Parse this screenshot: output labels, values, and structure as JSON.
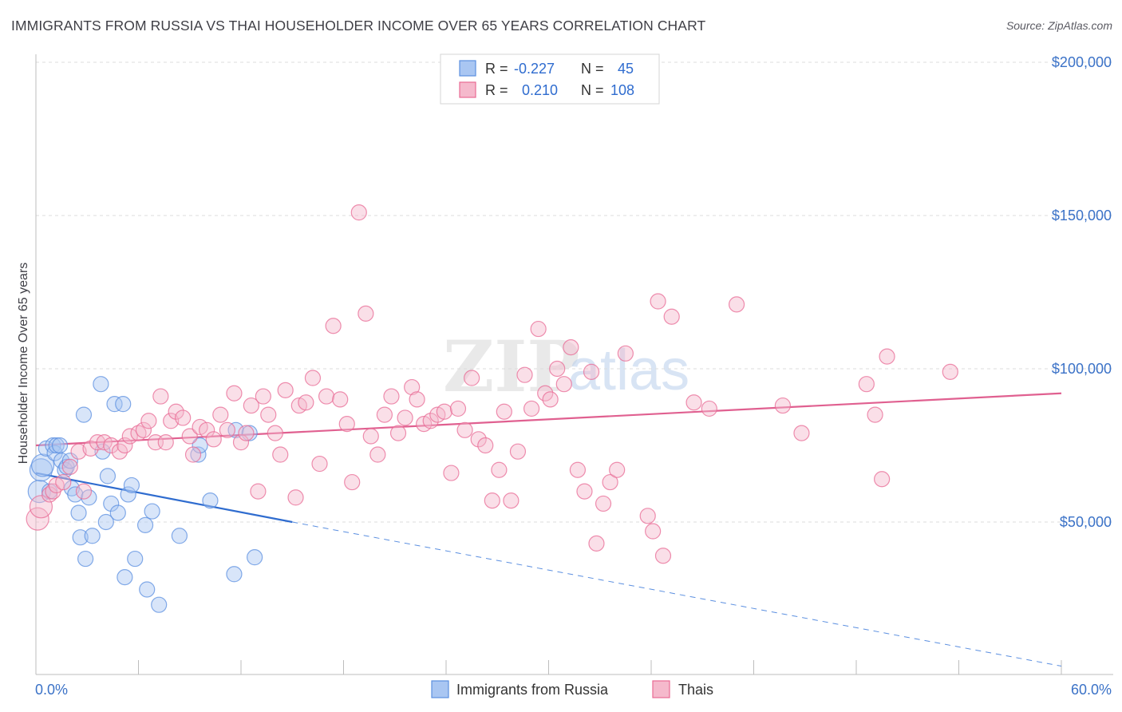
{
  "title": "IMMIGRANTS FROM RUSSIA VS THAI HOUSEHOLDER INCOME OVER 65 YEARS CORRELATION CHART",
  "source": "Source: ZipAtlas.com",
  "colors": {
    "blue": "#5b8fe0",
    "blue_fill": "#a9c6f2",
    "pink": "#e86a94",
    "pink_fill": "#f5b9cc",
    "axis_text": "#3b72c7"
  },
  "legend": {
    "rows": [
      {
        "r_label": "R =",
        "r_value": "-0.227",
        "n_label": "N =",
        "n_value": "45"
      },
      {
        "r_label": "R =",
        "r_value": "0.210",
        "n_label": "N =",
        "n_value": "108"
      }
    ]
  },
  "watermark": {
    "zip": "ZIP",
    "atlas": "atlas"
  },
  "chart_data": {
    "type": "scatter",
    "title": "IMMIGRANTS FROM RUSSIA VS THAI HOUSEHOLDER INCOME OVER 65 YEARS CORRELATION CHART",
    "xlabel": "",
    "ylabel": "Householder Income Over 65 years",
    "xlim": [
      0,
      60
    ],
    "ylim": [
      0,
      210000
    ],
    "x_tick_labels": [
      "0.0%",
      "60.0%"
    ],
    "y_ticks": [
      50000,
      100000,
      150000,
      200000
    ],
    "y_tick_labels": [
      "$50,000",
      "$100,000",
      "$150,000",
      "$200,000"
    ],
    "series": [
      {
        "name": "Immigrants from Russia",
        "color": "#5b8fe0",
        "trend": {
          "x0": 0,
          "y0": 66000,
          "x1": 15,
          "y1": 50000,
          "dash_to_x": 60,
          "dash_to_y": 3000
        },
        "points": [
          [
            0.2,
            60000
          ],
          [
            0.3,
            67000
          ],
          [
            0.4,
            68500
          ],
          [
            0.6,
            74000
          ],
          [
            0.8,
            60000
          ],
          [
            1.0,
            75000
          ],
          [
            1.1,
            72500
          ],
          [
            1.2,
            75000
          ],
          [
            1.4,
            75000
          ],
          [
            1.5,
            70000
          ],
          [
            1.7,
            67000
          ],
          [
            1.8,
            68000
          ],
          [
            2.0,
            70000
          ],
          [
            2.1,
            61000
          ],
          [
            2.3,
            59000
          ],
          [
            2.5,
            53000
          ],
          [
            2.6,
            45000
          ],
          [
            2.8,
            85000
          ],
          [
            2.9,
            38000
          ],
          [
            3.1,
            58000
          ],
          [
            3.3,
            45500
          ],
          [
            3.8,
            95000
          ],
          [
            3.9,
            73000
          ],
          [
            4.1,
            50000
          ],
          [
            4.2,
            65000
          ],
          [
            4.4,
            56000
          ],
          [
            4.6,
            88500
          ],
          [
            4.8,
            53000
          ],
          [
            5.1,
            88500
          ],
          [
            5.2,
            32000
          ],
          [
            5.4,
            59000
          ],
          [
            5.6,
            62000
          ],
          [
            5.8,
            38000
          ],
          [
            6.4,
            49000
          ],
          [
            6.5,
            28000
          ],
          [
            6.8,
            53500
          ],
          [
            7.2,
            23000
          ],
          [
            8.4,
            45500
          ],
          [
            9.5,
            72000
          ],
          [
            9.6,
            75000
          ],
          [
            10.2,
            57000
          ],
          [
            11.6,
            33000
          ],
          [
            11.7,
            80000
          ],
          [
            12.5,
            79000
          ],
          [
            12.8,
            38500
          ]
        ]
      },
      {
        "name": "Thais",
        "color": "#e86a94",
        "trend": {
          "x0": 0,
          "y0": 75000,
          "x1": 60,
          "y1": 92000
        },
        "points": [
          [
            0.1,
            51000
          ],
          [
            0.3,
            55000
          ],
          [
            0.8,
            59000
          ],
          [
            1.0,
            60000
          ],
          [
            1.2,
            62000
          ],
          [
            1.6,
            63000
          ],
          [
            2.0,
            68000
          ],
          [
            2.5,
            73000
          ],
          [
            2.8,
            60000
          ],
          [
            3.2,
            74000
          ],
          [
            3.6,
            76000
          ],
          [
            4.0,
            76000
          ],
          [
            4.4,
            75000
          ],
          [
            4.9,
            73000
          ],
          [
            5.2,
            75000
          ],
          [
            5.5,
            78000
          ],
          [
            6.0,
            79000
          ],
          [
            6.3,
            80000
          ],
          [
            6.6,
            83000
          ],
          [
            7.0,
            76000
          ],
          [
            7.3,
            91000
          ],
          [
            7.6,
            76000
          ],
          [
            7.9,
            83000
          ],
          [
            8.2,
            86000
          ],
          [
            8.6,
            84000
          ],
          [
            9.0,
            78000
          ],
          [
            9.2,
            72000
          ],
          [
            9.6,
            81000
          ],
          [
            10.0,
            80000
          ],
          [
            10.4,
            77000
          ],
          [
            10.8,
            85000
          ],
          [
            11.2,
            80000
          ],
          [
            11.6,
            92000
          ],
          [
            12.0,
            76000
          ],
          [
            12.3,
            79000
          ],
          [
            12.6,
            88000
          ],
          [
            13.0,
            60000
          ],
          [
            13.3,
            91000
          ],
          [
            13.6,
            85000
          ],
          [
            14.0,
            79000
          ],
          [
            14.3,
            72000
          ],
          [
            14.6,
            93000
          ],
          [
            15.2,
            58000
          ],
          [
            15.4,
            88000
          ],
          [
            15.8,
            89000
          ],
          [
            16.2,
            97000
          ],
          [
            16.6,
            69000
          ],
          [
            17.0,
            91000
          ],
          [
            17.4,
            114000
          ],
          [
            17.8,
            90000
          ],
          [
            18.2,
            82000
          ],
          [
            18.5,
            63000
          ],
          [
            18.9,
            151000
          ],
          [
            19.3,
            118000
          ],
          [
            19.6,
            78000
          ],
          [
            20.0,
            72000
          ],
          [
            20.4,
            85000
          ],
          [
            20.8,
            91000
          ],
          [
            21.2,
            79000
          ],
          [
            21.6,
            84000
          ],
          [
            22.0,
            94000
          ],
          [
            22.3,
            90000
          ],
          [
            22.7,
            82000
          ],
          [
            23.1,
            83000
          ],
          [
            23.5,
            85000
          ],
          [
            23.9,
            86000
          ],
          [
            24.3,
            66000
          ],
          [
            24.7,
            87000
          ],
          [
            25.1,
            80000
          ],
          [
            25.5,
            97000
          ],
          [
            25.9,
            77000
          ],
          [
            26.3,
            75000
          ],
          [
            26.7,
            57000
          ],
          [
            27.1,
            67000
          ],
          [
            27.4,
            86000
          ],
          [
            27.8,
            57000
          ],
          [
            28.2,
            73000
          ],
          [
            28.6,
            98000
          ],
          [
            29.0,
            87000
          ],
          [
            29.4,
            113000
          ],
          [
            29.8,
            92000
          ],
          [
            30.1,
            90000
          ],
          [
            30.5,
            100000
          ],
          [
            30.9,
            95000
          ],
          [
            31.3,
            107000
          ],
          [
            31.7,
            67000
          ],
          [
            32.1,
            60000
          ],
          [
            32.5,
            99000
          ],
          [
            32.8,
            43000
          ],
          [
            33.2,
            56000
          ],
          [
            33.6,
            63000
          ],
          [
            34.0,
            67000
          ],
          [
            34.5,
            105000
          ],
          [
            35.8,
            52000
          ],
          [
            36.1,
            47000
          ],
          [
            36.4,
            122000
          ],
          [
            36.7,
            39000
          ],
          [
            37.2,
            117000
          ],
          [
            38.5,
            89000
          ],
          [
            39.4,
            87000
          ],
          [
            41.0,
            121000
          ],
          [
            43.7,
            88000
          ],
          [
            44.8,
            79000
          ],
          [
            48.6,
            95000
          ],
          [
            49.1,
            85000
          ],
          [
            49.5,
            64000
          ],
          [
            49.8,
            104000
          ],
          [
            53.5,
            99000
          ]
        ]
      }
    ]
  },
  "bottom_legend": {
    "series1": "Immigrants from Russia",
    "series2": "Thais"
  }
}
